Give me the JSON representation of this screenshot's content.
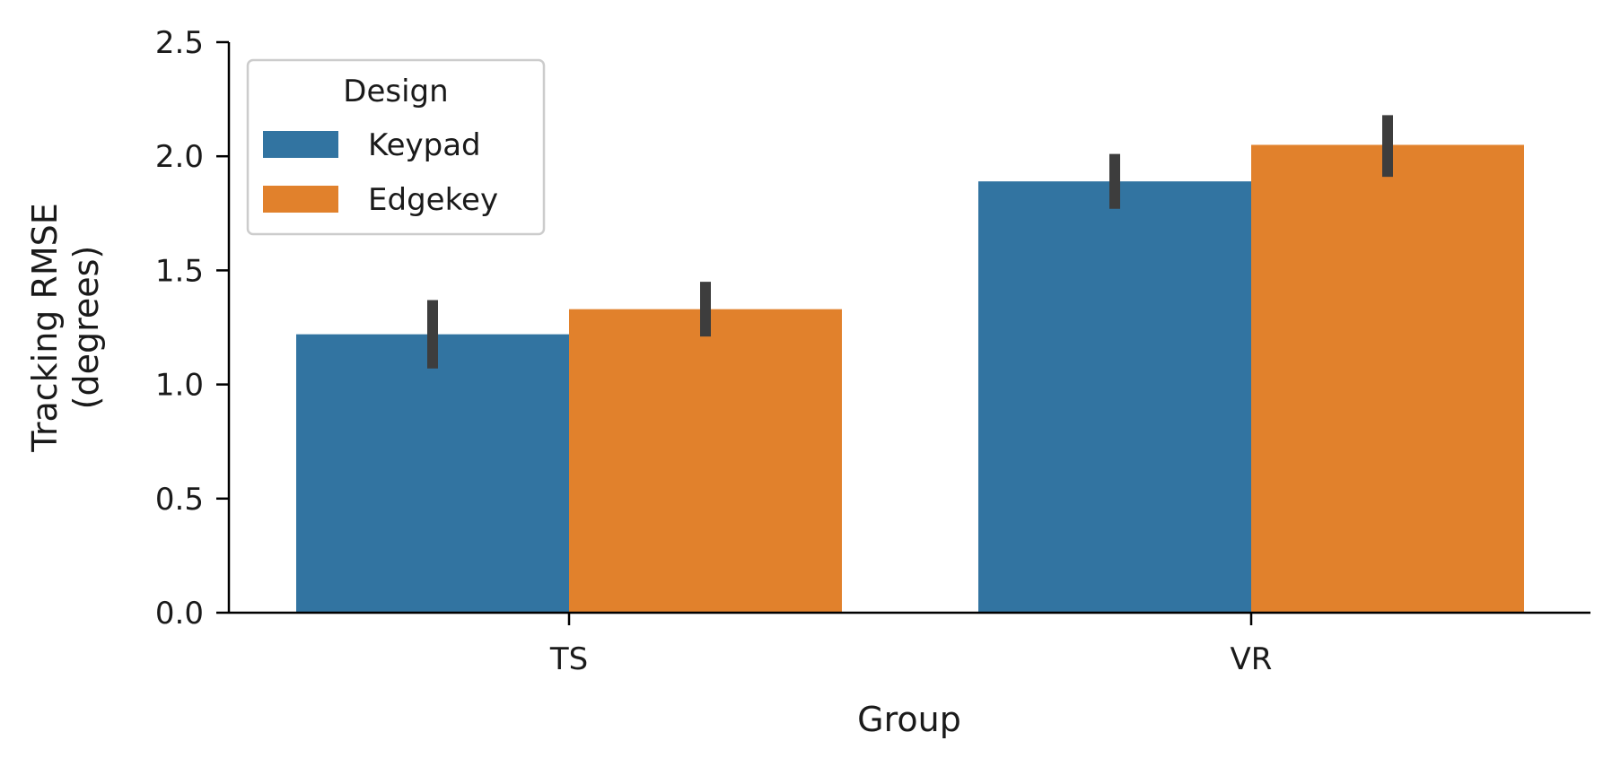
{
  "chart_data": {
    "type": "bar",
    "xlabel": "Group",
    "ylabel_lines": [
      "Tracking RMSE",
      "(degrees)"
    ],
    "categories": [
      "TS",
      "VR"
    ],
    "ylim": [
      0,
      2.5
    ],
    "yticks": [
      "0.0",
      "0.5",
      "1.0",
      "1.5",
      "2.0",
      "2.5"
    ],
    "ytick_values": [
      0,
      0.5,
      1.0,
      1.5,
      2.0,
      2.5
    ],
    "legend": {
      "title": "Design",
      "position": "top-left"
    },
    "series": [
      {
        "name": "Keypad",
        "color": "#3274a1",
        "values": [
          1.22,
          1.89
        ],
        "err_low": [
          1.07,
          1.77
        ],
        "err_high": [
          1.37,
          2.01
        ]
      },
      {
        "name": "Edgekey",
        "color": "#e1812c",
        "values": [
          1.33,
          2.05
        ],
        "err_low": [
          1.21,
          1.91
        ],
        "err_high": [
          1.45,
          2.18
        ]
      }
    ],
    "errorbar_color": "#3d3d3d",
    "grid": false
  }
}
